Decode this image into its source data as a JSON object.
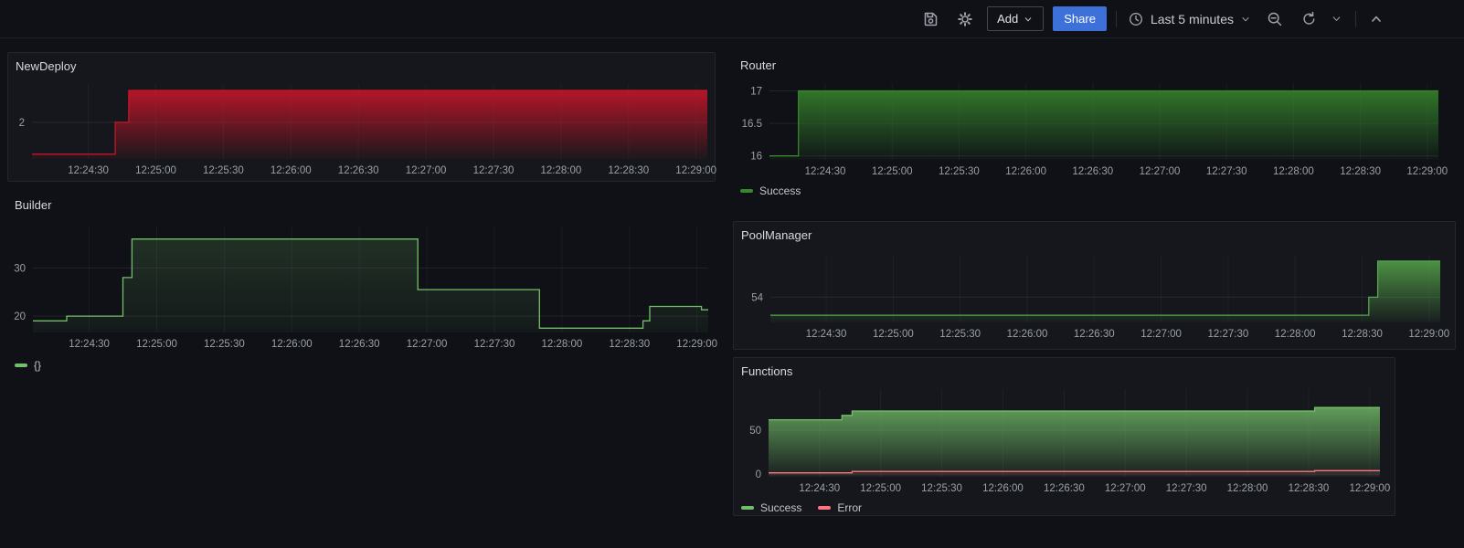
{
  "toolbar": {
    "add_label": "Add",
    "share_label": "Share",
    "time_range": "Last 5 minutes"
  },
  "chart_data": [
    {
      "title": "NewDeploy",
      "type": "area",
      "x_range_seconds": [
        5,
        305
      ],
      "x_ticks_seconds": [
        30,
        60,
        90,
        120,
        150,
        180,
        210,
        240,
        270,
        300
      ],
      "x_tick_labels": [
        "12:24:30",
        "12:25:00",
        "12:25:30",
        "12:26:00",
        "12:26:30",
        "12:27:00",
        "12:27:30",
        "12:28:00",
        "12:28:30",
        "12:29:00"
      ],
      "y_ticks": [
        2
      ],
      "ylim": [
        0.85,
        3.2
      ],
      "grid": true,
      "legend": [],
      "series": [
        {
          "name": "",
          "color": "#C4162A",
          "fill_top": 0.9,
          "fill_bottom": 0.05,
          "points": [
            [
              5,
              1
            ],
            [
              42,
              1
            ],
            [
              42,
              2
            ],
            [
              48,
              2
            ],
            [
              48,
              3
            ],
            [
              305,
              3
            ]
          ]
        }
      ]
    },
    {
      "title": "Router",
      "type": "area",
      "x_range_seconds": [
        5,
        305
      ],
      "x_ticks_seconds": [
        30,
        60,
        90,
        120,
        150,
        180,
        210,
        240,
        270,
        300
      ],
      "x_tick_labels": [
        "12:24:30",
        "12:25:00",
        "12:25:30",
        "12:26:00",
        "12:26:30",
        "12:27:00",
        "12:27:30",
        "12:28:00",
        "12:28:30",
        "12:29:00"
      ],
      "y_ticks": [
        16,
        16.5,
        17
      ],
      "ylim": [
        15.94,
        17.12
      ],
      "grid": true,
      "legend": [
        "Success"
      ],
      "series": [
        {
          "name": "Success",
          "color": "#37872D",
          "fill_top": 0.85,
          "fill_bottom": 0.05,
          "points": [
            [
              5,
              16
            ],
            [
              18,
              16
            ],
            [
              18,
              17
            ],
            [
              305,
              17
            ]
          ]
        }
      ]
    },
    {
      "title": "Builder",
      "type": "area",
      "x_range_seconds": [
        5,
        305
      ],
      "x_ticks_seconds": [
        30,
        60,
        90,
        120,
        150,
        180,
        210,
        240,
        270,
        300
      ],
      "x_tick_labels": [
        "12:24:30",
        "12:25:00",
        "12:25:30",
        "12:26:00",
        "12:26:30",
        "12:27:00",
        "12:27:30",
        "12:28:00",
        "12:28:30",
        "12:29:00"
      ],
      "y_ticks": [
        20,
        30
      ],
      "ylim": [
        16.6,
        38.6
      ],
      "grid": true,
      "legend": [
        "{}"
      ],
      "series": [
        {
          "name": "{}",
          "color": "#73BF69",
          "fill_top": 0.18,
          "fill_bottom": 0.05,
          "points": [
            [
              5,
              19
            ],
            [
              20,
              19
            ],
            [
              20,
              20
            ],
            [
              45,
              20
            ],
            [
              45,
              28
            ],
            [
              49,
              28
            ],
            [
              49,
              36
            ],
            [
              176,
              36
            ],
            [
              176,
              25.5
            ],
            [
              230,
              25.5
            ],
            [
              230,
              17.5
            ],
            [
              276,
              17.5
            ],
            [
              276,
              19
            ],
            [
              279,
              19
            ],
            [
              279,
              22
            ],
            [
              302,
              22
            ],
            [
              302,
              21.3
            ],
            [
              305,
              21.3
            ]
          ]
        }
      ]
    },
    {
      "title": "PoolManager",
      "type": "area",
      "x_range_seconds": [
        5,
        305
      ],
      "x_ticks_seconds": [
        30,
        60,
        90,
        120,
        150,
        180,
        210,
        240,
        270,
        300
      ],
      "x_tick_labels": [
        "12:24:30",
        "12:25:00",
        "12:25:30",
        "12:26:00",
        "12:26:30",
        "12:27:00",
        "12:27:30",
        "12:28:00",
        "12:28:30",
        "12:29:00"
      ],
      "y_ticks": [
        54
      ],
      "ylim": [
        52.6,
        56.35
      ],
      "grid": true,
      "legend": [],
      "series": [
        {
          "name": "",
          "color": "#56A64B",
          "fill_top": 0.85,
          "fill_bottom": 0.05,
          "points": [
            [
              5,
              53
            ],
            [
              273,
              53
            ],
            [
              273,
              54
            ],
            [
              277,
              54
            ],
            [
              277,
              56
            ],
            [
              305,
              56
            ]
          ]
        }
      ]
    },
    {
      "title": "Functions",
      "type": "area",
      "x_range_seconds": [
        5,
        305
      ],
      "x_ticks_seconds": [
        30,
        60,
        90,
        120,
        150,
        180,
        210,
        240,
        270,
        300
      ],
      "x_tick_labels": [
        "12:24:30",
        "12:25:00",
        "12:25:30",
        "12:26:00",
        "12:26:30",
        "12:27:00",
        "12:27:30",
        "12:28:00",
        "12:28:30",
        "12:29:00"
      ],
      "y_ticks": [
        0,
        50
      ],
      "ylim": [
        -3,
        97
      ],
      "grid": true,
      "legend": [
        "Success",
        "Error"
      ],
      "series": [
        {
          "name": "Success",
          "color": "#73BF69",
          "fill_top": 0.8,
          "fill_bottom": 0.05,
          "points": [
            [
              5,
              62
            ],
            [
              41,
              62
            ],
            [
              41,
              67
            ],
            [
              46,
              67
            ],
            [
              46,
              72
            ],
            [
              273,
              72
            ],
            [
              273,
              76
            ],
            [
              305,
              76
            ]
          ]
        },
        {
          "name": "Error",
          "color": "#FF7383",
          "fill_top": 0.12,
          "fill_bottom": 0.02,
          "points": [
            [
              5,
              1.5
            ],
            [
              46,
              1.5
            ],
            [
              46,
              3
            ],
            [
              273,
              3
            ],
            [
              273,
              4
            ],
            [
              305,
              4
            ]
          ]
        }
      ]
    }
  ]
}
